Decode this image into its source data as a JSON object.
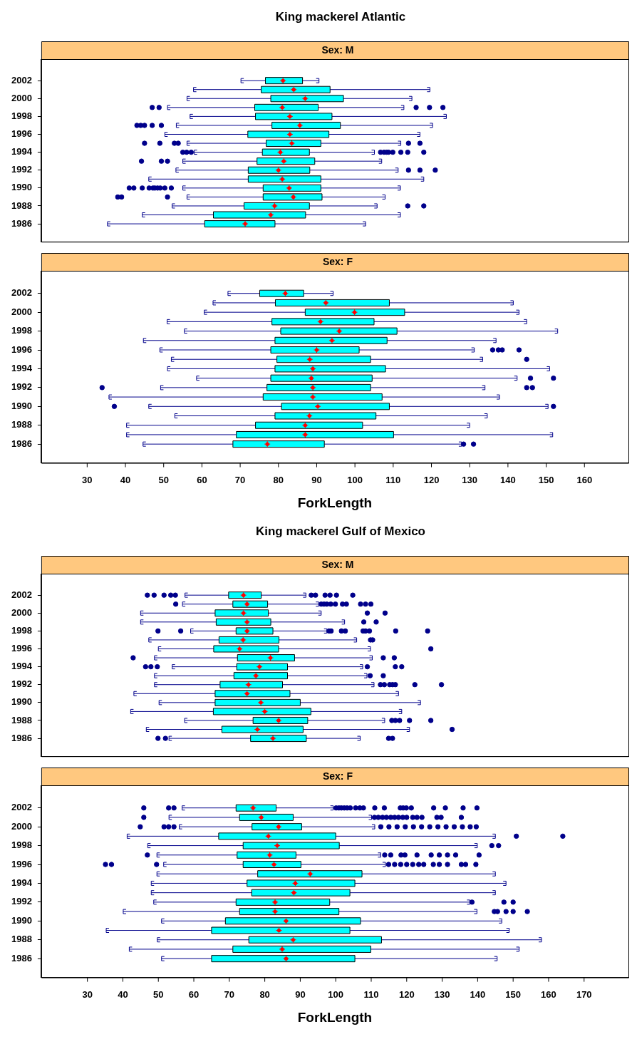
{
  "chart_data": [
    {
      "type": "box",
      "title": "King mackerel Atlantic",
      "subtitle": "Sex: M",
      "orientation": "horizontal",
      "color": "#00ffff",
      "tick_labels": "y",
      "categories": [
        "2002",
        null,
        "2000",
        null,
        "1998",
        null,
        "1996",
        null,
        "1994",
        null,
        "1992",
        null,
        "1990",
        null,
        "1988",
        null,
        "1986"
      ],
      "xlim": [
        18,
        171.5
      ],
      "boxes": [
        {
          "low": 70.2,
          "q1": 76.6,
          "median": 81.2,
          "q3": 86.3,
          "high": 90.6
        },
        {
          "low": 57.8,
          "q1": 75.5,
          "median": 84,
          "q3": 93.5,
          "high": 119.6
        },
        {
          "low": 56.1,
          "q1": 78,
          "median": 87,
          "q3": 97,
          "high": 114.9
        },
        {
          "low": 51,
          "q1": 73.8,
          "median": 81,
          "q3": 90.4,
          "high": 112.8,
          "outliers": [
            47,
            48.8,
            116,
            119.5,
            123
          ]
        },
        {
          "low": 56.9,
          "q1": 74,
          "median": 83,
          "q3": 94,
          "high": 123.9
        },
        {
          "low": 53.3,
          "q1": 78.3,
          "median": 85.6,
          "q3": 96.2,
          "high": 120.3,
          "outliers": [
            43,
            44,
            45,
            47,
            49.4
          ]
        },
        {
          "low": 50.3,
          "q1": 72,
          "median": 83,
          "q3": 93.2,
          "high": 117
        },
        {
          "low": 56.1,
          "q1": 76.8,
          "median": 83.5,
          "q3": 91.1,
          "high": 112,
          "outliers": [
            45,
            49,
            52.8,
            53.8,
            114,
            117
          ]
        },
        {
          "low": 58,
          "q1": 75.8,
          "median": 80.5,
          "q3": 88.1,
          "high": 105.1,
          "outliers": [
            55,
            56,
            57.2,
            106.7,
            107.6,
            108.3,
            108.8,
            109.9,
            112,
            113.8,
            118
          ]
        },
        {
          "low": 55,
          "q1": 74.4,
          "median": 81.4,
          "q3": 89.5,
          "high": 107,
          "outliers": [
            44.2,
            49.4,
            51
          ]
        },
        {
          "low": 53.2,
          "q1": 72.1,
          "median": 80,
          "q3": 88.2,
          "high": 111.3,
          "outliers": [
            114,
            117,
            121
          ]
        },
        {
          "low": 46.1,
          "q1": 72.1,
          "median": 81,
          "q3": 91.1,
          "high": 118
        },
        {
          "low": 55,
          "q1": 76,
          "median": 82.8,
          "q3": 91.1,
          "high": 111.9,
          "outliers": [
            41,
            42.2,
            44.4,
            46.2,
            47.2,
            47.7,
            48.4,
            49.1,
            50.3,
            52
          ]
        },
        {
          "low": 56.1,
          "q1": 76,
          "median": 83.9,
          "q3": 91.4,
          "high": 107.9,
          "outliers": [
            38,
            39,
            51
          ]
        },
        {
          "low": 52.2,
          "q1": 71,
          "median": 79,
          "q3": 88.1,
          "high": 105.8,
          "outliers": [
            113.8,
            118
          ]
        },
        {
          "low": 44.4,
          "q1": 63,
          "median": 78,
          "q3": 87.1,
          "high": 111.9
        },
        {
          "low": 35.3,
          "q1": 60.7,
          "median": 71.3,
          "q3": 79.1,
          "high": 102.8
        }
      ]
    },
    {
      "type": "box",
      "subtitle": "Sex: F",
      "xlabel": "ForkLength",
      "orientation": "horizontal",
      "color": "#00ffff",
      "categories": [
        "2002",
        null,
        "2000",
        null,
        "1998",
        null,
        "1996",
        null,
        "1994",
        null,
        "1992",
        null,
        "1990",
        null,
        "1988",
        null,
        "1986"
      ],
      "xlim": [
        18,
        171.5
      ],
      "xticks": [
        30,
        40,
        50,
        60,
        70,
        80,
        90,
        100,
        110,
        120,
        130,
        140,
        150,
        160
      ],
      "boxes": [
        {
          "low": 66.8,
          "q1": 75.1,
          "median": 81.8,
          "q3": 86.6,
          "high": 94.3
        },
        {
          "low": 62.9,
          "q1": 79.2,
          "median": 92.4,
          "q3": 109,
          "high": 141.4
        },
        {
          "low": 60.6,
          "q1": 87,
          "median": 99.9,
          "q3": 113,
          "high": 142.9
        },
        {
          "low": 50.9,
          "q1": 78.3,
          "median": 91,
          "q3": 105,
          "high": 144.9
        },
        {
          "low": 55.4,
          "q1": 80.6,
          "median": 95.9,
          "q3": 111,
          "high": 153
        },
        {
          "low": 44.7,
          "q1": 79.1,
          "median": 94,
          "q3": 108.4,
          "high": 136.9
        },
        {
          "low": 49,
          "q1": 78,
          "median": 90,
          "q3": 101.1,
          "high": 131.2,
          "outliers": [
            136,
            137.5,
            138.5,
            142.9
          ]
        },
        {
          "low": 52,
          "q1": 79.6,
          "median": 88.2,
          "q3": 104.1,
          "high": 133.4,
          "outliers": [
            144.9
          ]
        },
        {
          "low": 51,
          "q1": 79.1,
          "median": 89,
          "q3": 108,
          "high": 150.9
        },
        {
          "low": 58.6,
          "q1": 78,
          "median": 88.6,
          "q3": 104.5,
          "high": 142.4,
          "outliers": [
            145.9,
            151.9
          ]
        },
        {
          "low": 49.2,
          "q1": 77,
          "median": 89,
          "q3": 104.1,
          "high": 134,
          "outliers": [
            33.9,
            144.9,
            146.4
          ]
        },
        {
          "low": 35.7,
          "q1": 76,
          "median": 89,
          "q3": 107.1,
          "high": 137.8
        },
        {
          "low": 46.1,
          "q1": 80.8,
          "median": 90.3,
          "q3": 109,
          "high": 150.5,
          "outliers": [
            37.1,
            151.9
          ]
        },
        {
          "low": 52.9,
          "q1": 79.1,
          "median": 88.1,
          "q3": 105.5,
          "high": 134.6
        },
        {
          "low": 40.3,
          "q1": 74,
          "median": 87,
          "q3": 102,
          "high": 130
        },
        {
          "low": 40.3,
          "q1": 69,
          "median": 87,
          "q3": 110.1,
          "high": 151.7
        },
        {
          "low": 44.6,
          "q1": 68.1,
          "median": 77.1,
          "q3": 92,
          "high": 127.9,
          "outliers": [
            128.4,
            131
          ]
        }
      ]
    },
    {
      "type": "box",
      "title": "King mackerel Gulf of Mexico",
      "subtitle": "Sex: M",
      "orientation": "horizontal",
      "color": "#00ffff",
      "tick_labels": "y",
      "categories": [
        "2002",
        null,
        "2000",
        null,
        "1998",
        null,
        "1996",
        null,
        "1994",
        null,
        "1992",
        null,
        "1990",
        null,
        "1988",
        null,
        "1986"
      ],
      "xlim": [
        17,
        182.5
      ],
      "boxes": [
        {
          "low": 57.5,
          "q1": 69.8,
          "median": 74,
          "q3": 79,
          "high": 91.6,
          "outliers": [
            46.9,
            48.8,
            51.6,
            53.5,
            54.8,
            93.1,
            94.3,
            97,
            98.4,
            100.2,
            104.8
          ]
        },
        {
          "low": 56.8,
          "q1": 71,
          "median": 75,
          "q3": 80.8,
          "high": 95.2,
          "outliers": [
            54.9,
            95.9,
            96.7,
            97.5,
            98.6,
            99.9,
            101.9,
            103,
            107,
            108.4,
            109.9
          ]
        },
        {
          "low": 45,
          "q1": 66,
          "median": 74,
          "q3": 81,
          "high": 95.9,
          "outliers": [
            108.9,
            113.9
          ]
        },
        {
          "low": 45,
          "q1": 66.3,
          "median": 75,
          "q3": 81.7,
          "high": 102.5,
          "outliers": [
            107.9,
            111.4
          ]
        },
        {
          "low": 59.1,
          "q1": 71.9,
          "median": 75,
          "q3": 82.3,
          "high": 97.5,
          "outliers": [
            49.9,
            56.3,
            98.1,
            98.7,
            101.6,
            102.7,
            107.7,
            108.4,
            109.5,
            116.9,
            125.9
          ]
        },
        {
          "low": 47.3,
          "q1": 67.1,
          "median": 73.9,
          "q3": 84,
          "high": 105.9,
          "outliers": [
            109.8,
            110.4
          ]
        },
        {
          "low": 50,
          "q1": 65.6,
          "median": 72.9,
          "q3": 83.9,
          "high": 109.8,
          "outliers": [
            126.8
          ]
        },
        {
          "low": 48.9,
          "q1": 72.3,
          "median": 81.6,
          "q3": 88.4,
          "high": 110.3,
          "outliers": [
            42.9,
            113.4,
            116.5
          ]
        },
        {
          "low": 53.9,
          "q1": 72.1,
          "median": 78.5,
          "q3": 86.4,
          "high": 107.6,
          "outliers": [
            46.4,
            47.9,
            49.7,
            108.9,
            116.8,
            118.6
          ]
        },
        {
          "low": 48.9,
          "q1": 71.3,
          "median": 77.5,
          "q3": 86.4,
          "high": 108.8,
          "outliers": [
            109.7,
            113.4
          ]
        },
        {
          "low": 48.9,
          "q1": 67.4,
          "median": 75.4,
          "q3": 85,
          "high": 110.8,
          "outliers": [
            112.6,
            113.7,
            115.2,
            116,
            116.8,
            122.3,
            129.8
          ]
        },
        {
          "low": 43.1,
          "q1": 66,
          "median": 75,
          "q3": 87.1,
          "high": 117.7
        },
        {
          "low": 50.2,
          "q1": 66,
          "median": 78.9,
          "q3": 90,
          "high": 123.9
        },
        {
          "low": 42.2,
          "q1": 65.5,
          "median": 80,
          "q3": 93,
          "high": 118.6
        },
        {
          "low": 57.4,
          "q1": 76.7,
          "median": 83.9,
          "q3": 92.1,
          "high": 113.8,
          "outliers": [
            115.8,
            116.8,
            118,
            120.8,
            126.8
          ]
        },
        {
          "low": 46.6,
          "q1": 67.9,
          "median": 77.9,
          "q3": 90.8,
          "high": 120.8,
          "outliers": [
            132.8
          ]
        },
        {
          "low": 53,
          "q1": 76,
          "median": 82.3,
          "q3": 91.7,
          "high": 106.9,
          "outliers": [
            49.9,
            52,
            114.9,
            116
          ]
        }
      ]
    },
    {
      "type": "box",
      "subtitle": "Sex: F",
      "xlabel": "ForkLength",
      "orientation": "horizontal",
      "color": "#00ffff",
      "categories": [
        "2002",
        null,
        "2000",
        null,
        "1998",
        null,
        "1996",
        null,
        "1994",
        null,
        "1992",
        null,
        "1990",
        null,
        "1988",
        null,
        "1986"
      ],
      "xlim": [
        17,
        182.5
      ],
      "xticks": [
        30,
        40,
        50,
        60,
        70,
        80,
        90,
        100,
        110,
        120,
        130,
        140,
        150,
        160,
        170
      ],
      "boxes": [
        {
          "low": 56.7,
          "q1": 71.9,
          "median": 76.7,
          "q3": 83.2,
          "high": 99.3,
          "outliers": [
            45.9,
            52.9,
            54.4,
            100.1,
            100.9,
            101.6,
            102.4,
            103.2,
            104.1,
            105.6,
            106.8,
            107.8,
            111,
            113.7,
            118.2,
            119,
            119.9,
            121.3,
            127.6,
            130.9,
            135.9,
            139.8
          ]
        },
        {
          "low": 53,
          "q1": 72.9,
          "median": 79,
          "q3": 88,
          "high": 110.1,
          "outliers": [
            45.9,
            110.9,
            112,
            113.2,
            114.3,
            115.5,
            116.6,
            117.7,
            118.9,
            120,
            121.7,
            122.9,
            124.3,
            128.5,
            129.7,
            135.4
          ]
        },
        {
          "low": 55.9,
          "q1": 76.4,
          "median": 83.9,
          "q3": 90.4,
          "high": 111,
          "outliers": [
            44.9,
            51.6,
            52.9,
            54.4,
            112.7,
            115,
            117.3,
            119.6,
            121.9,
            124.2,
            126.5,
            128.8,
            131.1,
            133.4,
            135.7,
            137.9,
            139.6
          ]
        },
        {
          "low": 41.2,
          "q1": 67,
          "median": 81,
          "q3": 100,
          "high": 145,
          "outliers": [
            150.9,
            164
          ]
        },
        {
          "low": 47,
          "q1": 73.9,
          "median": 83.5,
          "q3": 101,
          "high": 139.9,
          "outliers": [
            144,
            145.9
          ]
        },
        {
          "low": 49.6,
          "q1": 72.2,
          "median": 81.4,
          "q3": 88.8,
          "high": 112.7,
          "outliers": [
            46.9,
            113.8,
            115.5,
            118.4,
            119.5,
            122.9,
            126.9,
            129.2,
            131.5,
            133.8,
            140.4
          ]
        },
        {
          "low": 51.5,
          "q1": 73.9,
          "median": 82.6,
          "q3": 90.2,
          "high": 114,
          "outliers": [
            35.1,
            36.8,
            49.5,
            114.9,
            116.6,
            118.3,
            120,
            121.7,
            123.4,
            124.8,
            127.5,
            129.2,
            131.5,
            135.4,
            136.6,
            139.5
          ]
        },
        {
          "low": 49.6,
          "q1": 78,
          "median": 92.8,
          "q3": 107.4,
          "high": 145
        },
        {
          "low": 48,
          "q1": 75,
          "median": 88.6,
          "q3": 105.4,
          "high": 148
        },
        {
          "low": 48,
          "q1": 76.3,
          "median": 88.2,
          "q3": 104,
          "high": 145
        },
        {
          "low": 48.7,
          "q1": 71.9,
          "median": 82.9,
          "q3": 98.3,
          "high": 137.8,
          "outliers": [
            138.4,
            147.4,
            150
          ]
        },
        {
          "low": 40.1,
          "q1": 72.9,
          "median": 82.9,
          "q3": 100.9,
          "high": 139.8,
          "outliers": [
            144.7,
            145.6,
            148,
            150,
            154
          ]
        },
        {
          "low": 50.9,
          "q1": 68.9,
          "median": 86,
          "q3": 107,
          "high": 146.8
        },
        {
          "low": 35.3,
          "q1": 65,
          "median": 84,
          "q3": 104,
          "high": 148.9
        },
        {
          "low": 49.7,
          "q1": 75.5,
          "median": 88,
          "q3": 112.9,
          "high": 158
        },
        {
          "low": 41.8,
          "q1": 71,
          "median": 84.9,
          "q3": 109.9,
          "high": 151.7
        },
        {
          "low": 50.9,
          "q1": 65,
          "median": 86,
          "q3": 105.4,
          "high": 145.5
        }
      ]
    }
  ]
}
